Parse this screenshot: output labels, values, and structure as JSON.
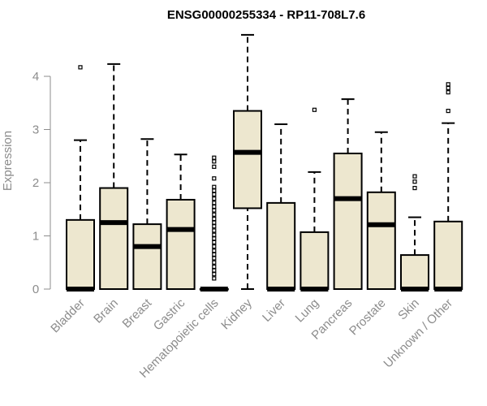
{
  "chart_data": {
    "type": "boxplot",
    "title": "ENSG00000255334 - RP11-708L7.6",
    "ylabel": "Expression",
    "xlabel": "",
    "ylim": [
      0,
      4.9
    ],
    "yticks": [
      0,
      1,
      2,
      3,
      4
    ],
    "box_fill": "#ede7cf",
    "categories": [
      "Bladder",
      "Brain",
      "Breast",
      "Gastric",
      "Hematopoietic cells",
      "Kidney",
      "Liver",
      "Lung",
      "Pancreas",
      "Prostate",
      "Skin",
      "Unknown / Other"
    ],
    "boxes": [
      {
        "min": 0,
        "q1": 0,
        "median": 0,
        "q3": 1.3,
        "max": 2.8,
        "outliers": [
          4.17
        ]
      },
      {
        "min": 0,
        "q1": 0,
        "median": 1.25,
        "q3": 1.9,
        "max": 4.23,
        "outliers": []
      },
      {
        "min": 0,
        "q1": 0,
        "median": 0.8,
        "q3": 1.22,
        "max": 2.82,
        "outliers": []
      },
      {
        "min": 0,
        "q1": 0,
        "median": 1.12,
        "q3": 1.68,
        "max": 2.53,
        "outliers": []
      },
      {
        "min": 0,
        "q1": 0,
        "median": 0,
        "q3": 0,
        "max": 0,
        "outliers": [
          0.2,
          0.28,
          0.35,
          0.42,
          0.5,
          0.58,
          0.65,
          0.72,
          0.8,
          0.88,
          0.95,
          1.02,
          1.1,
          1.18,
          1.25,
          1.32,
          1.4,
          1.48,
          1.55,
          1.62,
          1.7,
          1.78,
          1.85,
          1.92,
          2.08,
          2.3,
          2.4,
          2.47
        ]
      },
      {
        "min": 0,
        "q1": 1.52,
        "median": 2.57,
        "q3": 3.35,
        "max": 4.78,
        "outliers": []
      },
      {
        "min": 0,
        "q1": 0,
        "median": 0,
        "q3": 1.62,
        "max": 3.1,
        "outliers": []
      },
      {
        "min": 0,
        "q1": 0,
        "median": 0,
        "q3": 1.07,
        "max": 2.2,
        "outliers": [
          3.37
        ]
      },
      {
        "min": 0,
        "q1": 0,
        "median": 1.7,
        "q3": 2.55,
        "max": 3.57,
        "outliers": []
      },
      {
        "min": 0,
        "q1": 0,
        "median": 1.21,
        "q3": 1.82,
        "max": 2.95,
        "outliers": []
      },
      {
        "min": 0,
        "q1": 0,
        "median": 0,
        "q3": 0.64,
        "max": 1.35,
        "outliers": [
          1.9,
          2.02,
          2.12
        ]
      },
      {
        "min": 0,
        "q1": 0,
        "median": 0,
        "q3": 1.27,
        "max": 3.12,
        "outliers": [
          3.35,
          3.7,
          3.78,
          3.85
        ]
      }
    ]
  }
}
